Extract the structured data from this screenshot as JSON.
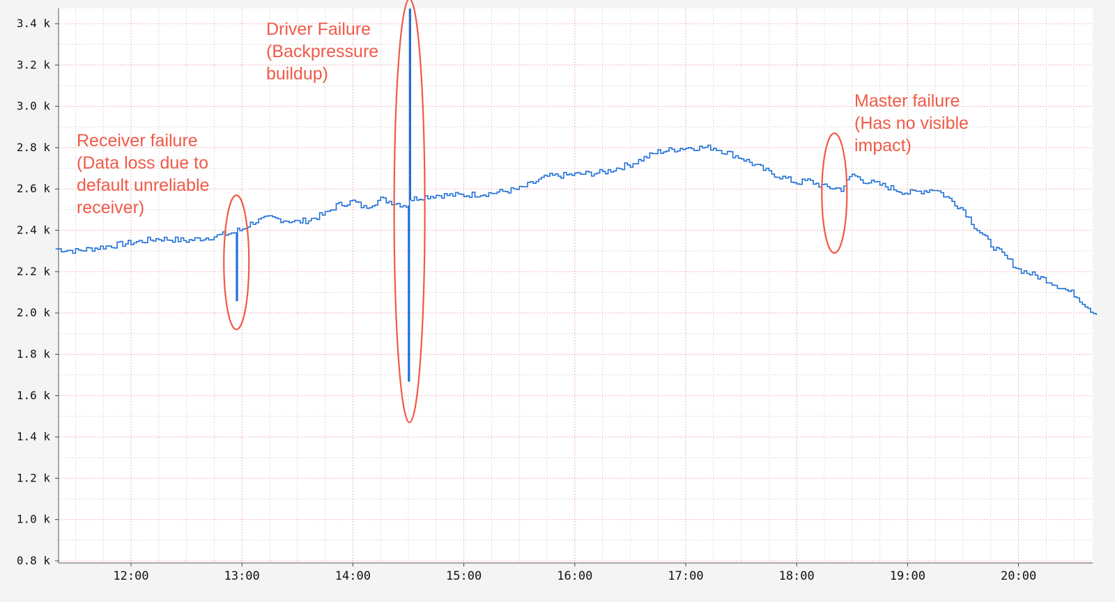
{
  "chart_data": {
    "type": "line",
    "title": "",
    "xlabel": "",
    "ylabel": "",
    "x_unit": "time of day (hours)",
    "xlim": [
      11.32,
      20.7
    ],
    "ylim": [
      0.8,
      3.45
    ],
    "grid": true,
    "x_ticks": [
      {
        "value": 12,
        "label": "12:00"
      },
      {
        "value": 13,
        "label": "13:00"
      },
      {
        "value": 14,
        "label": "14:00"
      },
      {
        "value": 15,
        "label": "15:00"
      },
      {
        "value": 16,
        "label": "16:00"
      },
      {
        "value": 17,
        "label": "17:00"
      },
      {
        "value": 18,
        "label": "18:00"
      },
      {
        "value": 19,
        "label": "19:00"
      },
      {
        "value": 20,
        "label": "20:00"
      }
    ],
    "y_ticks": [
      {
        "value": 0.8,
        "label": "0.8 k"
      },
      {
        "value": 1.0,
        "label": "1.0 k"
      },
      {
        "value": 1.2,
        "label": "1.2 k"
      },
      {
        "value": 1.4,
        "label": "1.4 k"
      },
      {
        "value": 1.6,
        "label": "1.6 k"
      },
      {
        "value": 1.8,
        "label": "1.8 k"
      },
      {
        "value": 2.0,
        "label": "2.0 k"
      },
      {
        "value": 2.2,
        "label": "2.2 k"
      },
      {
        "value": 2.4,
        "label": "2.4 k"
      },
      {
        "value": 2.6,
        "label": "2.6 k"
      },
      {
        "value": 2.8,
        "label": "2.8 k"
      },
      {
        "value": 3.0,
        "label": "3.0 k"
      },
      {
        "value": 3.2,
        "label": "3.2 k"
      },
      {
        "value": 3.4,
        "label": "3.4 k"
      }
    ],
    "series_color": "#1f6fd6",
    "annotation_color": "#ef5a48",
    "series": [
      {
        "x": [
          11.32,
          11.5,
          11.75,
          12.0,
          12.25,
          12.5,
          12.75,
          12.93,
          12.95,
          12.95,
          12.96,
          12.96,
          12.98,
          13.1,
          13.25,
          13.5,
          13.6,
          13.75,
          13.85,
          14.0,
          14.1,
          14.25,
          14.4,
          14.48,
          14.5,
          14.5,
          14.51,
          14.51,
          14.52,
          14.52,
          14.53,
          14.6,
          14.75,
          15.0,
          15.25,
          15.5,
          15.75,
          16.0,
          16.25,
          16.5,
          16.75,
          17.0,
          17.25,
          17.5,
          17.75,
          18.0,
          18.1,
          18.25,
          18.4,
          18.5,
          18.6,
          18.75,
          19.0,
          19.25,
          19.5,
          19.6,
          19.75,
          19.9,
          20.0,
          20.25,
          20.5,
          20.6,
          20.7
        ],
        "y": [
          2.31,
          2.3,
          2.32,
          2.34,
          2.36,
          2.35,
          2.37,
          2.39,
          2.39,
          2.06,
          2.06,
          2.4,
          2.4,
          2.44,
          2.46,
          2.44,
          2.45,
          2.48,
          2.52,
          2.54,
          2.51,
          2.55,
          2.53,
          2.52,
          2.52,
          1.67,
          1.67,
          3.47,
          3.47,
          2.55,
          2.55,
          2.56,
          2.57,
          2.57,
          2.58,
          2.6,
          2.66,
          2.67,
          2.68,
          2.72,
          2.78,
          2.8,
          2.8,
          2.75,
          2.68,
          2.63,
          2.64,
          2.61,
          2.6,
          2.67,
          2.64,
          2.62,
          2.58,
          2.6,
          2.5,
          2.42,
          2.33,
          2.26,
          2.21,
          2.16,
          2.09,
          2.04,
          1.99
        ]
      }
    ],
    "annotations": [
      {
        "lines": [
          "Receiver failure",
          "(Data loss due to",
          "default unreliable",
          " receiver)"
        ],
        "x": 12.95,
        "y_range": [
          1.92,
          2.57
        ]
      },
      {
        "lines": [
          "Driver Failure",
          "(Backpressure",
          " buildup)"
        ],
        "x": 14.51,
        "y_range": [
          1.47,
          3.52
        ]
      },
      {
        "lines": [
          "Master failure",
          "(Has no visible",
          "impact)"
        ],
        "x": 18.34,
        "y_range": [
          2.29,
          2.87
        ]
      }
    ]
  }
}
